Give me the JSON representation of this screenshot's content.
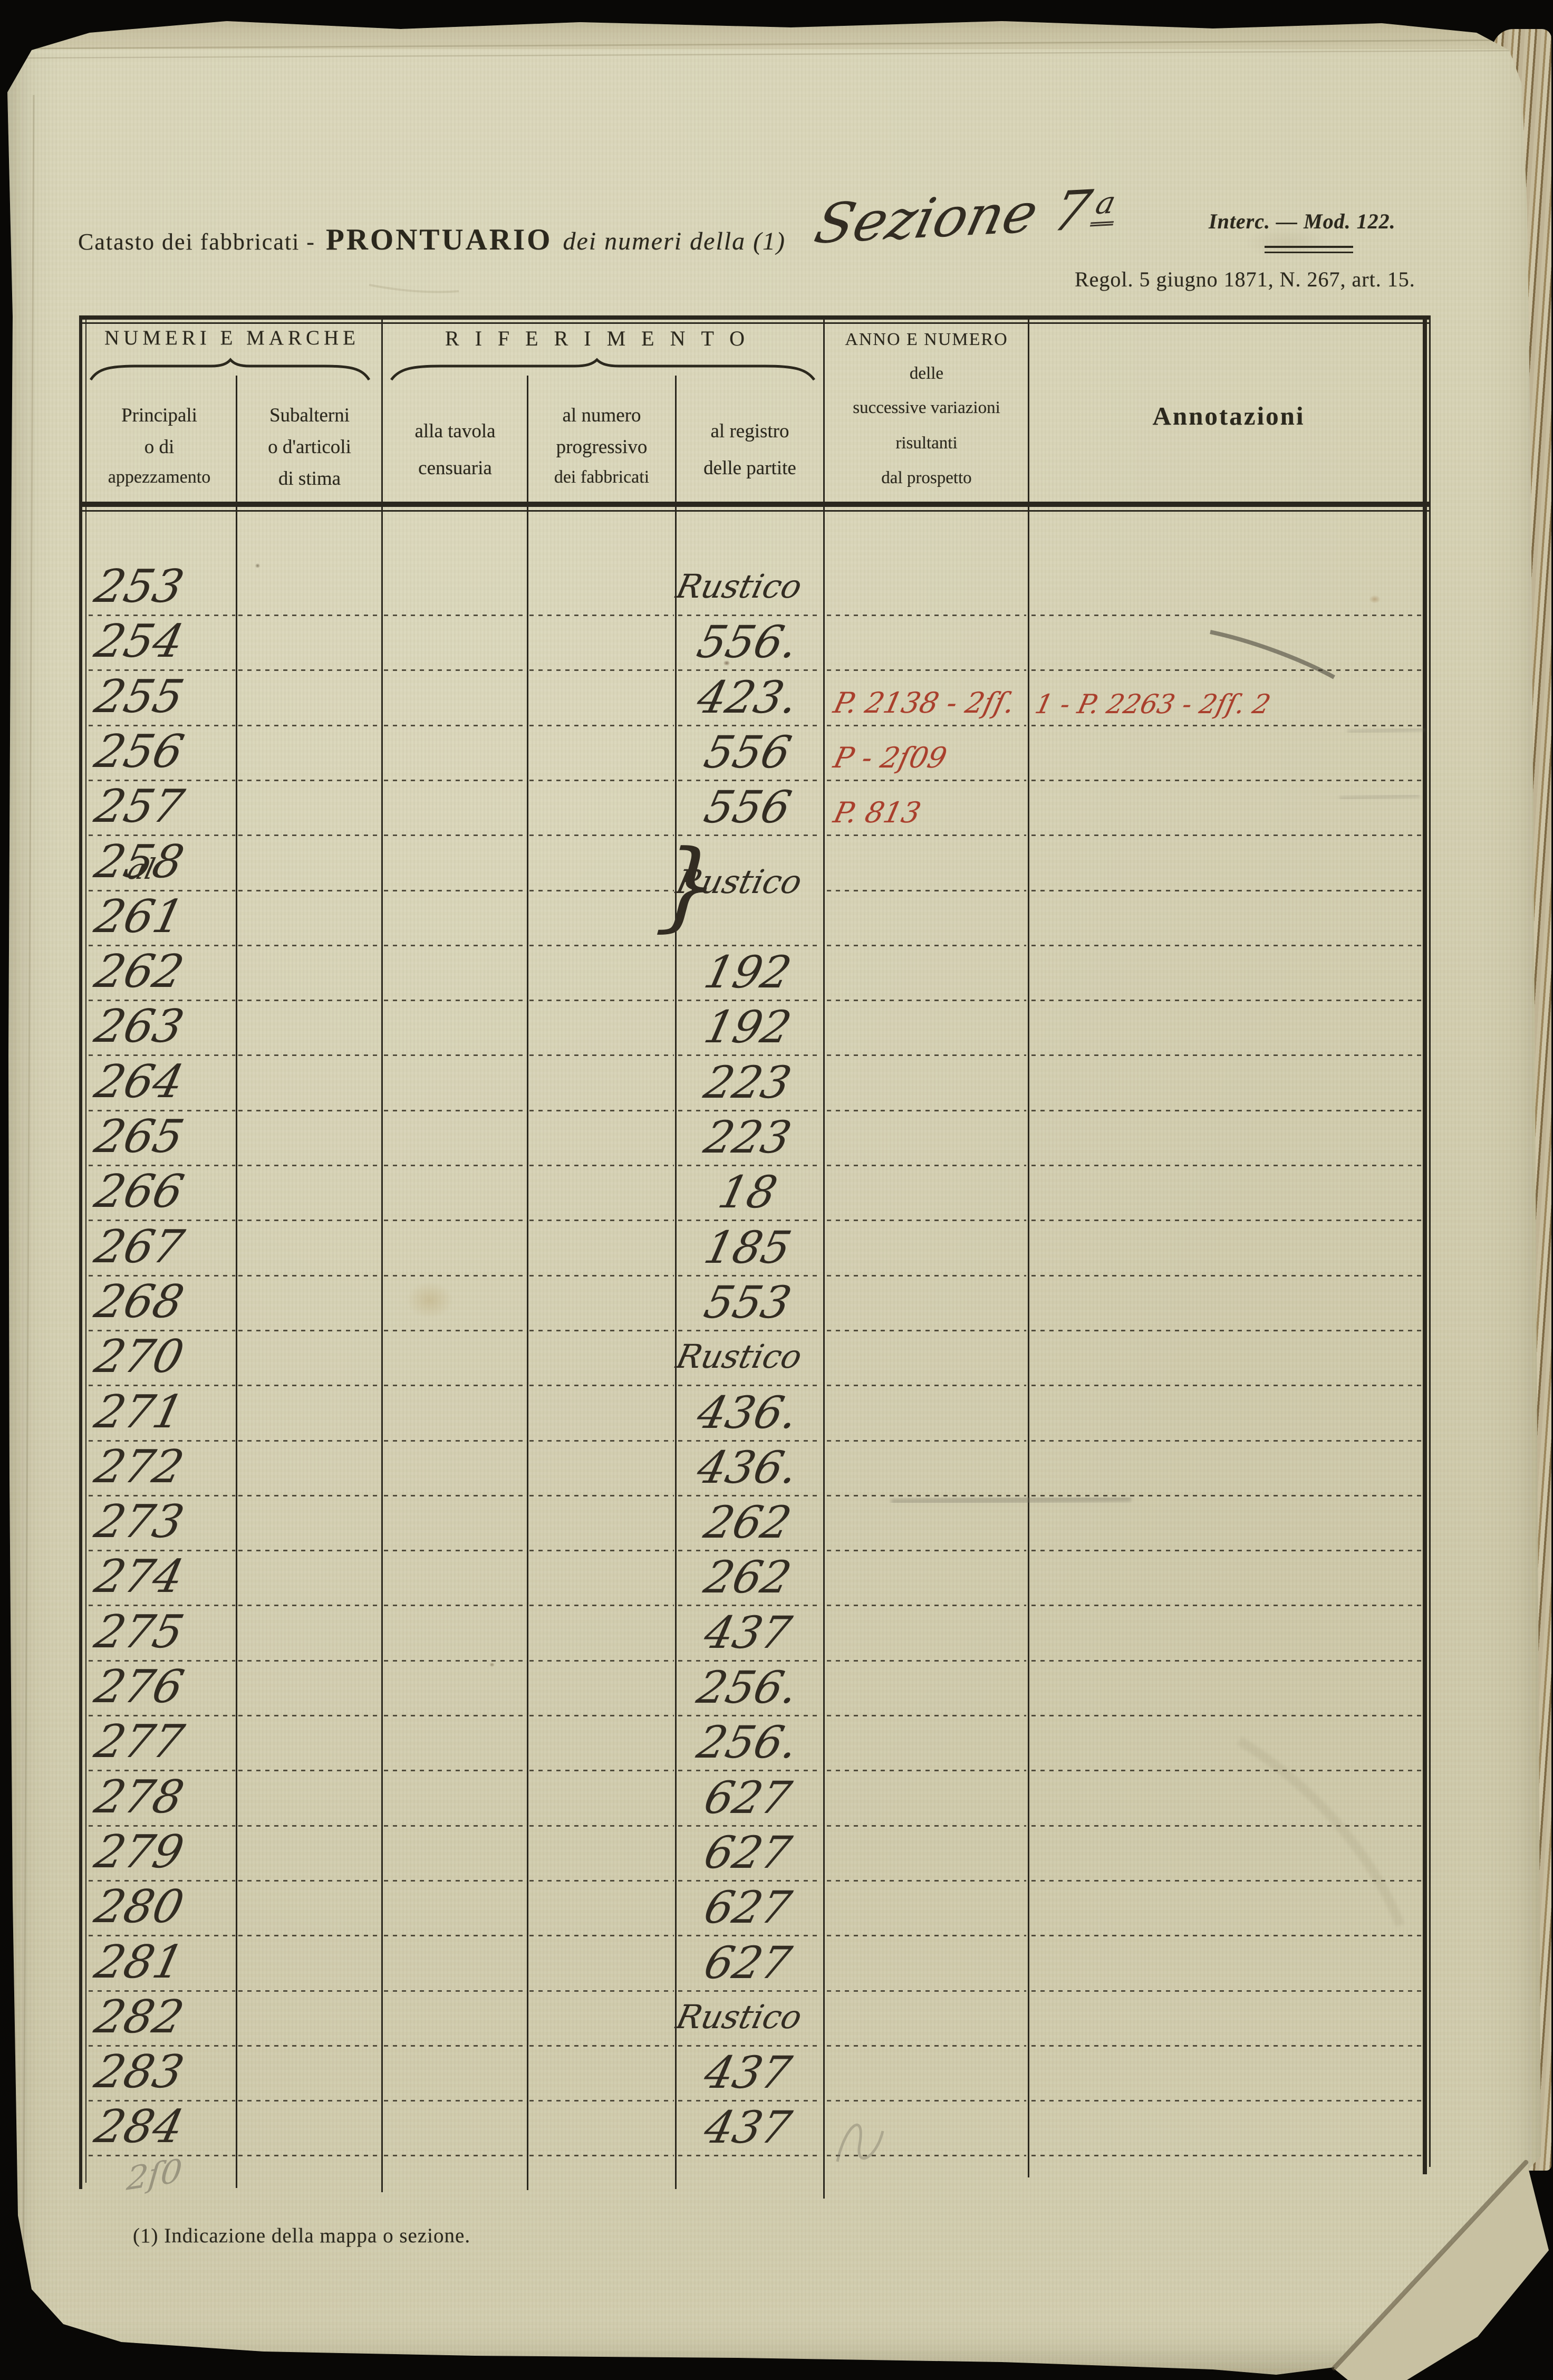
{
  "colors": {
    "background": "#090806",
    "paper": "#d6d2b4",
    "printed_ink": "#2b281d",
    "handwriting_ink": "#322c22",
    "red_ink": "#a93f2c",
    "pencil": "#6f6b5c"
  },
  "header": {
    "title_prefix": "Catasto dei fabbricati -",
    "title_main": "PRONTUARIO",
    "title_suffix": "dei numeri della (1)",
    "section_label": "Sezione 7",
    "section_ordinal": "a",
    "form_ref": "Interc. — Mod. 122.",
    "regulation": "Regol. 5 giugno 1871, N. 267, art. 15."
  },
  "table": {
    "group_headers": {
      "numeri_e_marche": "NUMERI E MARCHE",
      "riferimento": "RIFERIMENTO"
    },
    "columns": {
      "principali": [
        "Principali",
        "o di",
        "appezzamento"
      ],
      "subalterni": [
        "Subalterni",
        "o d'articoli",
        "di stima"
      ],
      "tavola": [
        "alla tavola",
        "censuaria"
      ],
      "numero_progressivo": [
        "al numero",
        "progressivo",
        "dei fabbricati"
      ],
      "registro": [
        "al registro",
        "delle partite"
      ],
      "variazioni": [
        "ANNO E NUMERO",
        "delle",
        "successive variazioni",
        "risultanti",
        "dal prospetto"
      ],
      "annotazioni": "Annotazioni"
    },
    "rows": [
      {
        "num": "253",
        "registro": "Rustico"
      },
      {
        "num": "254",
        "registro": "556."
      },
      {
        "num": "255",
        "registro": "423.",
        "variazioni": "P. 2138 - 2ſſ.",
        "annotazioni": "1 - P. 2263 - 2ſſ. 2"
      },
      {
        "num": "256",
        "registro": "556",
        "variazioni": "P - 2ſ09"
      },
      {
        "num": "257",
        "registro": "556",
        "variazioni": "P. 813"
      },
      {
        "num": "258",
        "group": "start"
      },
      {
        "num": "261",
        "prefix": "al",
        "registro": "Rustico",
        "group": "end",
        "brace": true
      },
      {
        "num": "262",
        "registro": "192"
      },
      {
        "num": "263",
        "registro": "192"
      },
      {
        "num": "264",
        "registro": "223"
      },
      {
        "num": "265",
        "registro": "223"
      },
      {
        "num": "266",
        "registro": "18"
      },
      {
        "num": "267",
        "registro": "185"
      },
      {
        "num": "268",
        "registro": "553"
      },
      {
        "num": "270",
        "registro": "Rustico"
      },
      {
        "num": "271",
        "registro": "436."
      },
      {
        "num": "272",
        "registro": "436."
      },
      {
        "num": "273",
        "registro": "262"
      },
      {
        "num": "274",
        "registro": "262"
      },
      {
        "num": "275",
        "registro": "437"
      },
      {
        "num": "276",
        "registro": "256."
      },
      {
        "num": "277",
        "registro": "256."
      },
      {
        "num": "278",
        "registro": "627"
      },
      {
        "num": "279",
        "registro": "627"
      },
      {
        "num": "280",
        "registro": "627"
      },
      {
        "num": "281",
        "registro": "627"
      },
      {
        "num": "282",
        "registro": "Rustico"
      },
      {
        "num": "283",
        "registro": "437"
      },
      {
        "num": "284",
        "registro": "437"
      }
    ]
  },
  "footnote": "(1) Indicazione della mappa o sezione.",
  "pencil_marks": {
    "bottom_left": "2ſ0"
  }
}
